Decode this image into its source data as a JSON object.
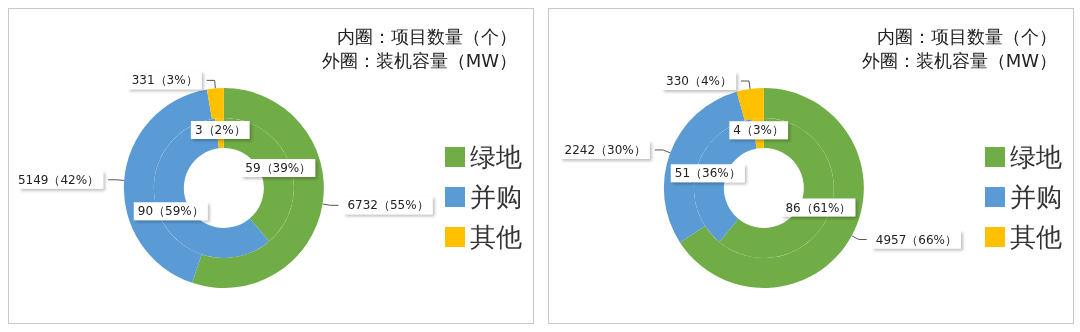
{
  "chart_data": [
    {
      "type": "donut",
      "categories": [
        "绿地",
        "并购",
        "其他"
      ],
      "colors": [
        "#70ad47",
        "#5b9bd5",
        "#ffc000"
      ],
      "legend": "right",
      "annotations": [
        "内圈：项目数量（个）",
        "外圈：装机容量（MW）"
      ],
      "series": [
        {
          "values": [
            59,
            90,
            3
          ],
          "value_labels": [
            "59（39%）",
            "90（59%）",
            "3（2%）"
          ]
        },
        {
          "values": [
            6732,
            5149,
            331
          ],
          "value_labels": [
            "6732（55%）",
            "5149（42%）",
            "331（3%）"
          ]
        }
      ]
    },
    {
      "type": "donut",
      "categories": [
        "绿地",
        "并购",
        "其他"
      ],
      "colors": [
        "#70ad47",
        "#5b9bd5",
        "#ffc000"
      ],
      "legend": "right",
      "annotations": [
        "内圈：项目数量（个）",
        "外圈：装机容量（MW）"
      ],
      "series": [
        {
          "values": [
            86,
            51,
            4
          ],
          "value_labels": [
            "86（61%）",
            "51（36%）",
            "4（3%）"
          ]
        },
        {
          "values": [
            4957,
            2242,
            330
          ],
          "value_labels": [
            "4957（66%）",
            "2242（30%）",
            "330（4%）"
          ]
        }
      ]
    }
  ]
}
